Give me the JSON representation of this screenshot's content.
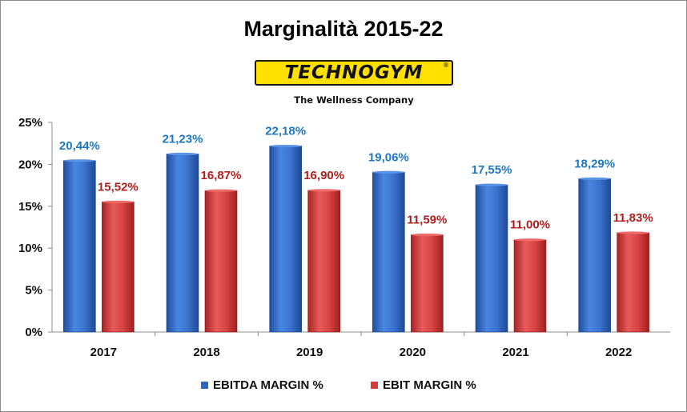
{
  "title": "Marginalità 2015-22",
  "logo": {
    "text": "TECHNOGYM",
    "registered_mark": "®",
    "tagline": "The Wellness Company"
  },
  "colors": {
    "ebitda": "#2e67bf",
    "ebit": "#d63a3a",
    "ebitda_label": "#1f77c2",
    "ebit_label": "#b01e1e"
  },
  "chart_data": {
    "type": "bar",
    "categories": [
      "2017",
      "2018",
      "2019",
      "2020",
      "2021",
      "2022"
    ],
    "series": [
      {
        "name": "EBITDA MARGIN %",
        "values": [
          20.44,
          21.23,
          22.18,
          19.06,
          17.55,
          18.29
        ],
        "labels": [
          "20,44%",
          "21,23%",
          "22,18%",
          "19,06%",
          "17,55%",
          "18,29%"
        ]
      },
      {
        "name": "EBIT MARGIN %",
        "values": [
          15.52,
          16.87,
          16.9,
          11.59,
          11.0,
          11.83
        ],
        "labels": [
          "15,52%",
          "16,87%",
          "16,90%",
          "11,59%",
          "11,00%",
          "11,83%"
        ]
      }
    ],
    "ylim": [
      0,
      25
    ],
    "yticks": [
      0,
      5,
      10,
      15,
      20,
      25
    ],
    "ytick_labels": [
      "0%",
      "5%",
      "10%",
      "15%",
      "20%",
      "25%"
    ],
    "xlabel": "",
    "ylabel": "",
    "grid": false,
    "legend_position": "bottom"
  }
}
